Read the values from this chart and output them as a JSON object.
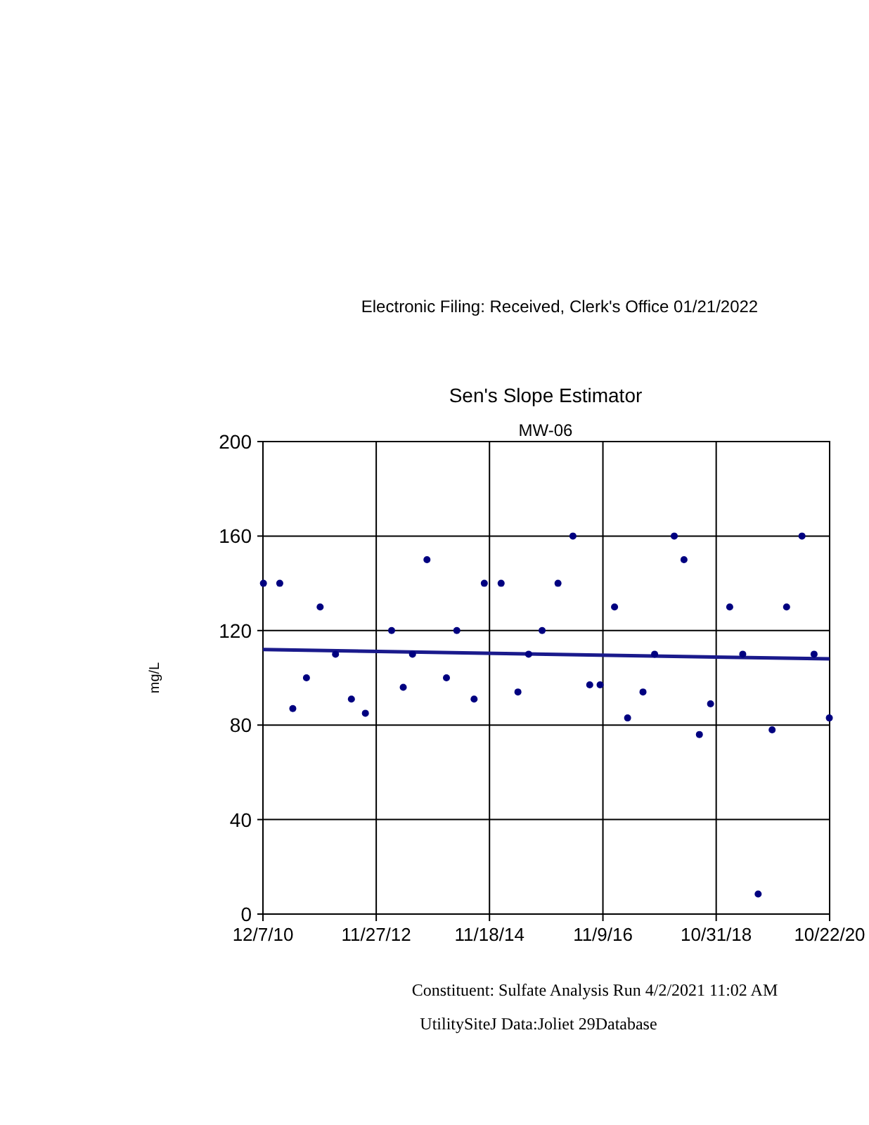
{
  "chart_data": {
    "type": "scatter",
    "title": "Sen's Slope Estimator",
    "subtitle": "MW-06",
    "ylabel": "mg/L",
    "annotations": [
      "Electronic Filing: Received, Clerk's Office 01/21/2022",
      "Constituent: Sulfate Analysis Run 4/2/2021 11:02 AM",
      "UtilitySiteJ Data:Joliet 29Database"
    ],
    "xlim": [
      "2010-12-07",
      "2020-10-22"
    ],
    "xticks": [
      {
        "value": "2010-12-07",
        "label": "12/7/10"
      },
      {
        "value": "2012-11-27",
        "label": "11/27/12"
      },
      {
        "value": "2014-11-18",
        "label": "11/18/14"
      },
      {
        "value": "2016-11-09",
        "label": "11/9/16"
      },
      {
        "value": "2018-10-31",
        "label": "10/31/18"
      },
      {
        "value": "2020-10-22",
        "label": "10/22/20"
      }
    ],
    "ylim": [
      0,
      200
    ],
    "yticks": [
      0,
      40,
      80,
      120,
      160,
      200
    ],
    "grid": true,
    "marker": "circle",
    "series": [
      {
        "color": "#000080",
        "x": [
          "2010-12-10",
          "2011-03-24",
          "2011-06-15",
          "2011-09-10",
          "2011-12-06",
          "2012-03-13",
          "2012-06-22",
          "2012-09-19",
          "2013-03-05",
          "2013-05-18",
          "2013-07-16",
          "2013-10-16",
          "2014-02-17",
          "2014-04-24",
          "2014-08-12",
          "2014-10-16",
          "2015-01-31",
          "2015-05-18",
          "2015-07-25",
          "2015-10-19",
          "2016-01-28",
          "2016-05-02",
          "2016-08-17",
          "2016-10-22",
          "2017-01-22",
          "2017-04-15",
          "2017-07-22",
          "2017-10-04",
          "2018-02-06",
          "2018-04-09",
          "2018-07-16",
          "2018-09-25",
          "2019-01-25",
          "2019-04-18",
          "2019-07-25",
          "2019-10-22",
          "2020-01-22",
          "2020-04-29",
          "2020-07-15",
          "2020-10-20"
        ],
        "values": [
          140,
          140,
          87,
          100,
          130,
          110,
          91,
          85,
          120,
          96,
          110,
          150,
          100,
          120,
          91,
          140,
          140,
          94,
          110,
          120,
          140,
          160,
          97,
          97,
          130,
          83,
          94,
          110,
          160,
          150,
          76,
          89,
          130,
          110,
          8.5,
          78,
          130,
          160,
          110,
          83
        ]
      },
      {
        "type": "line",
        "color": "#1a1a8c",
        "x": [
          "2010-12-07",
          "2020-10-22"
        ],
        "values": [
          112,
          108
        ],
        "marker": "none"
      }
    ]
  }
}
